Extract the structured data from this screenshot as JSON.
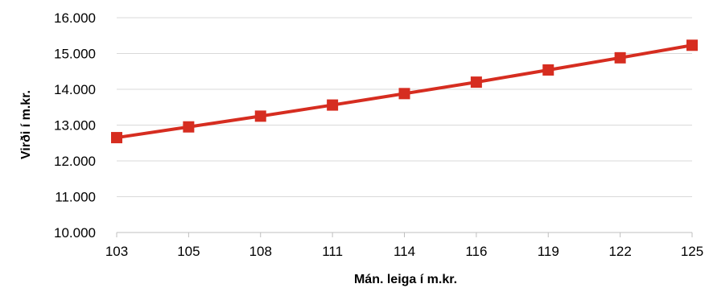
{
  "chart_data": {
    "type": "line",
    "title": "",
    "xlabel": "Mán. leiga í m.kr.",
    "ylabel": "Virði í m.kr.",
    "categories": [
      "103",
      "105",
      "108",
      "111",
      "114",
      "116",
      "119",
      "122",
      "125"
    ],
    "series": [
      {
        "values": [
          12650,
          12950,
          13250,
          13560,
          13880,
          14200,
          14540,
          14880,
          15230
        ]
      }
    ],
    "ylim": [
      10000,
      16000
    ],
    "yticks": [
      10000,
      11000,
      12000,
      13000,
      14000,
      15000,
      16000
    ],
    "ytick_labels": [
      "10.000",
      "11.000",
      "12.000",
      "13.000",
      "14.000",
      "15.000",
      "16.000"
    ],
    "grid": true,
    "legend": "none",
    "line_color": "#d62d20",
    "marker": "square"
  }
}
